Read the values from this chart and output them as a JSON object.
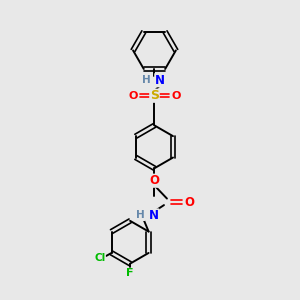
{
  "background_color": "#e8e8e8",
  "bond_color": "#000000",
  "atom_colors": {
    "N": "#0000ff",
    "O": "#ff0000",
    "S": "#ccaa00",
    "Cl": "#00bb00",
    "F": "#00bb00",
    "H": "#6688aa",
    "C": "#000000"
  },
  "figsize": [
    3.0,
    3.0
  ],
  "dpi": 100,
  "xlim": [
    0,
    10
  ],
  "ylim": [
    0,
    10
  ]
}
